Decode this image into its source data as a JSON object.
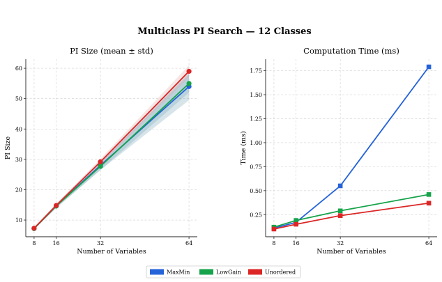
{
  "figure": {
    "title": "Multiclass PI Search — 12 Classes"
  },
  "colors": {
    "MaxMin": "#2563d9",
    "LowGain": "#16a34a",
    "Unordered": "#dc2626",
    "band_blue": "#6fa3b5",
    "band_red": "#e2a5a5"
  },
  "legend": {
    "items": [
      "MaxMin",
      "LowGain",
      "Unordered"
    ]
  },
  "chart_data": [
    {
      "type": "line",
      "title": "PI Size  (mean ± std)",
      "xlabel": "Number of Variables",
      "ylabel": "PI Size",
      "x": [
        8,
        16,
        32,
        64
      ],
      "xticks": [
        "8",
        "16",
        "32",
        "64"
      ],
      "yticks": [
        "10",
        "20",
        "30",
        "40",
        "50",
        "60"
      ],
      "xlim": [
        5,
        67
      ],
      "ylim": [
        4.5,
        63
      ],
      "grid": true,
      "marker": "circle",
      "series": [
        {
          "name": "MaxMin",
          "values": [
            7.2,
            14.7,
            28.0,
            54.0
          ],
          "std": [
            0.3,
            0.7,
            1.5,
            4.5
          ]
        },
        {
          "name": "LowGain",
          "values": [
            7.2,
            14.6,
            27.7,
            55.0
          ],
          "std": [
            0.3,
            0.6,
            1.2,
            3.0
          ]
        },
        {
          "name": "Unordered",
          "values": [
            7.3,
            14.8,
            29.2,
            59.0
          ],
          "std": [
            0.3,
            0.6,
            1.0,
            2.0
          ]
        }
      ]
    },
    {
      "type": "line",
      "title": "Computation Time (ms)",
      "xlabel": "Number of Variables",
      "ylabel": "Time (ms)",
      "x": [
        8,
        16,
        32,
        64
      ],
      "xticks": [
        "8",
        "16",
        "32",
        "64"
      ],
      "yticks": [
        "0.25",
        "0.50",
        "0.75",
        "1.00",
        "1.25",
        "1.50",
        "1.75"
      ],
      "xlim": [
        5,
        67
      ],
      "ylim": [
        0.02,
        1.87
      ],
      "grid": true,
      "marker": "square",
      "series": [
        {
          "name": "MaxMin",
          "values": [
            0.11,
            0.17,
            0.55,
            1.79
          ]
        },
        {
          "name": "LowGain",
          "values": [
            0.12,
            0.19,
            0.29,
            0.46
          ]
        },
        {
          "name": "Unordered",
          "values": [
            0.1,
            0.15,
            0.24,
            0.37
          ]
        }
      ]
    }
  ]
}
